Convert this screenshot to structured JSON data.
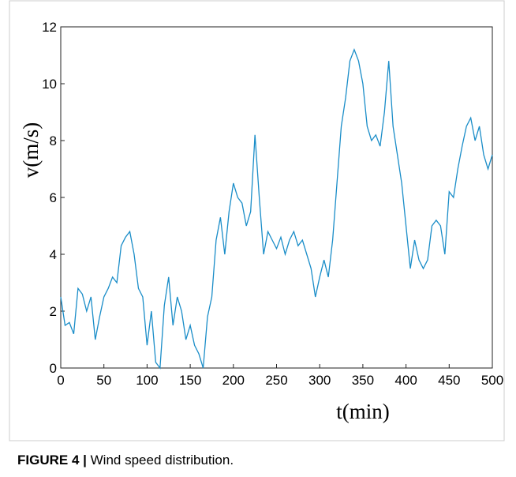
{
  "chart_data": {
    "type": "line",
    "xlabel": "t(min)",
    "ylabel": "v(m/s)",
    "caption_label": "FIGURE 4 |",
    "caption": "Wind speed distribution.",
    "x": [
      0,
      5,
      10,
      15,
      20,
      25,
      30,
      35,
      40,
      45,
      50,
      55,
      60,
      65,
      70,
      75,
      80,
      85,
      90,
      95,
      100,
      105,
      110,
      115,
      120,
      125,
      130,
      135,
      140,
      145,
      150,
      155,
      160,
      165,
      170,
      175,
      180,
      185,
      190,
      195,
      200,
      205,
      210,
      215,
      220,
      225,
      230,
      235,
      240,
      245,
      250,
      255,
      260,
      265,
      270,
      275,
      280,
      285,
      290,
      295,
      300,
      305,
      310,
      315,
      320,
      325,
      330,
      335,
      340,
      345,
      350,
      355,
      360,
      365,
      370,
      375,
      380,
      385,
      390,
      395,
      400,
      405,
      410,
      415,
      420,
      425,
      430,
      435,
      440,
      445,
      450,
      455,
      460,
      465,
      470,
      475,
      480,
      485,
      490,
      495,
      500
    ],
    "series": [
      {
        "color": "#1a8dc8",
        "values": [
          2.5,
          1.5,
          1.6,
          1.2,
          2.8,
          2.6,
          2.0,
          2.5,
          1.0,
          1.8,
          2.5,
          2.8,
          3.2,
          3.0,
          4.3,
          4.6,
          4.8,
          4.0,
          2.8,
          2.5,
          0.8,
          2.0,
          0.2,
          0.0,
          2.2,
          3.2,
          1.5,
          2.5,
          2.0,
          1.0,
          1.5,
          0.8,
          0.5,
          0.0,
          1.8,
          2.5,
          4.5,
          5.3,
          4.0,
          5.5,
          6.5,
          6.0,
          5.8,
          5.0,
          5.5,
          8.2,
          6.0,
          4.0,
          4.8,
          4.5,
          4.2,
          4.6,
          4.0,
          4.5,
          4.8,
          4.3,
          4.5,
          4.0,
          3.5,
          2.5,
          3.2,
          3.8,
          3.2,
          4.5,
          6.5,
          8.5,
          9.5,
          10.8,
          11.2,
          10.8,
          10.0,
          8.5,
          8.0,
          8.2,
          7.8,
          9.0,
          10.8,
          8.5,
          7.5,
          6.5,
          5.0,
          3.5,
          4.5,
          3.8,
          3.5,
          3.8,
          5.0,
          5.2,
          5.0,
          4.0,
          6.2,
          6.0,
          7.0,
          7.8,
          8.5,
          8.8,
          8.0,
          8.5,
          7.5,
          7.0,
          7.5
        ]
      }
    ],
    "xlim": [
      0,
      500
    ],
    "xticks": [
      0,
      50,
      100,
      150,
      200,
      250,
      300,
      350,
      400,
      450,
      500
    ],
    "ylim": [
      0,
      12
    ],
    "yticks": [
      0,
      2,
      4,
      6,
      8,
      10,
      12
    ]
  }
}
